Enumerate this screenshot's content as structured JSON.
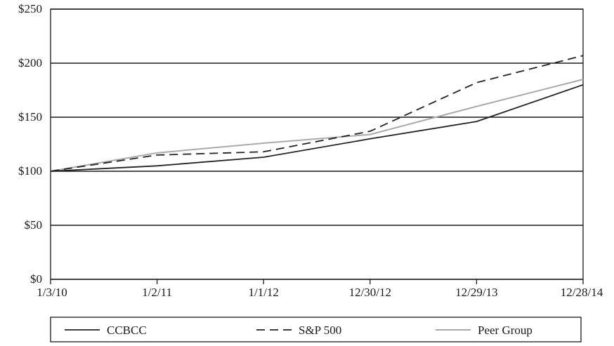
{
  "chart_data": {
    "type": "line",
    "categories": [
      "1/3/10",
      "1/2/11",
      "1/1/12",
      "12/30/12",
      "12/29/13",
      "12/28/14"
    ],
    "ylim": [
      0,
      250
    ],
    "yticks": [
      0,
      50,
      100,
      150,
      200,
      250
    ],
    "ytick_labels": [
      "$0",
      "$50",
      "$100",
      "$150",
      "$200",
      "$250"
    ],
    "grid": "horizontal",
    "legend_placement": "bottom",
    "series": [
      {
        "name": "CCBCC",
        "values": [
          100,
          105,
          113,
          130,
          146,
          180
        ],
        "color": "#222222",
        "dash": "solid"
      },
      {
        "name": "S&P 500",
        "values": [
          100,
          115,
          118,
          137,
          182,
          207
        ],
        "color": "#222222",
        "dash": "dashed"
      },
      {
        "name": "Peer Group",
        "values": [
          100,
          117,
          126,
          134,
          160,
          185
        ],
        "color": "#aaaaaa",
        "dash": "solid"
      }
    ]
  }
}
